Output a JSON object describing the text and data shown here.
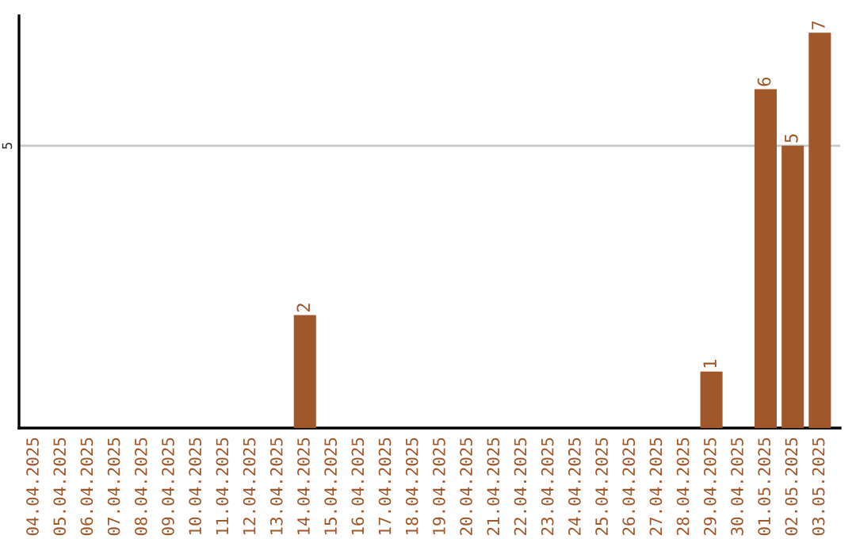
{
  "chart_data": {
    "type": "bar",
    "categories": [
      "04.04.2025",
      "05.04.2025",
      "06.04.2025",
      "07.04.2025",
      "08.04.2025",
      "09.04.2025",
      "10.04.2025",
      "11.04.2025",
      "12.04.2025",
      "13.04.2025",
      "14.04.2025",
      "15.04.2025",
      "16.04.2025",
      "17.04.2025",
      "18.04.2025",
      "19.04.2025",
      "20.04.2025",
      "21.04.2025",
      "22.04.2025",
      "23.04.2025",
      "24.04.2025",
      "25.04.2025",
      "26.04.2025",
      "27.04.2025",
      "28.04.2025",
      "29.04.2025",
      "30.04.2025",
      "01.05.2025",
      "02.05.2025",
      "03.05.2025"
    ],
    "values": [
      0,
      0,
      0,
      0,
      0,
      0,
      0,
      0,
      0,
      0,
      2,
      0,
      0,
      0,
      0,
      0,
      0,
      0,
      0,
      0,
      0,
      0,
      0,
      0,
      0,
      1,
      0,
      6,
      5,
      7
    ],
    "value_labels": [
      null,
      null,
      null,
      null,
      null,
      null,
      null,
      null,
      null,
      null,
      "2",
      null,
      null,
      null,
      null,
      null,
      null,
      null,
      null,
      null,
      null,
      null,
      null,
      null,
      null,
      "1",
      null,
      "6",
      "5",
      "7"
    ],
    "color": "#a0572a",
    "ylim": [
      0,
      7.3
    ],
    "yticks": [
      5
    ],
    "grid": "y",
    "legend": false
  }
}
